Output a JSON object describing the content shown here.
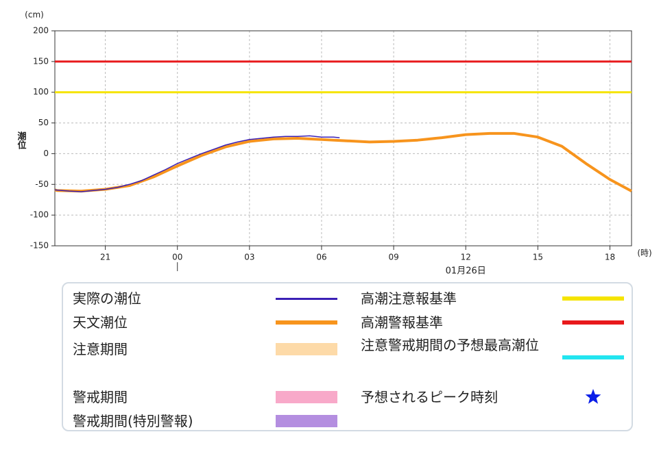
{
  "chart_data": {
    "type": "line",
    "y_unit": "(cm)",
    "y_label": "潮位",
    "x_unit": "(時)",
    "xlim": [
      18.9,
      42.9
    ],
    "xticks": [
      21,
      {
        "value": 24,
        "label": "00"
      },
      {
        "value": 27,
        "label": "03"
      },
      {
        "value": 30,
        "label": "06"
      },
      {
        "value": 33,
        "label": "09"
      },
      {
        "value": 36,
        "label": "12"
      },
      {
        "value": 39,
        "label": "15"
      },
      {
        "value": 42,
        "label": "18"
      }
    ],
    "ylim": [
      -150,
      200
    ],
    "yticks": [
      -150,
      -100,
      -50,
      0,
      50,
      100,
      150,
      200
    ],
    "grid": true,
    "date_annotation": {
      "text": "01月26日",
      "x": 36,
      "day_start": 24
    },
    "series": [
      {
        "name": "実際の潮位",
        "color": "#3a1fb5",
        "width": 1.5,
        "x": [
          18.9,
          19.5,
          20,
          20.5,
          21,
          21.5,
          22,
          22.5,
          23,
          23.5,
          24,
          24.5,
          25,
          25.5,
          26,
          26.5,
          27,
          27.5,
          28,
          28.5,
          29,
          29.5,
          30,
          30.5,
          30.75
        ],
        "values": [
          -59,
          -61,
          -62,
          -60,
          -58,
          -55,
          -50,
          -44,
          -35,
          -26,
          -16,
          -8,
          0,
          7,
          14,
          19,
          23,
          25,
          27,
          28,
          28,
          29,
          27,
          27,
          26
        ]
      },
      {
        "name": "天文潮位",
        "color": "#f7941d",
        "width": 4,
        "x": [
          18.9,
          19,
          20,
          21,
          22,
          23,
          24,
          25,
          26,
          27,
          28,
          29,
          30,
          31,
          32,
          33,
          34,
          35,
          36,
          37,
          38,
          39,
          40,
          41,
          42,
          42.9
        ],
        "values": [
          -59,
          -60,
          -61,
          -58,
          -52,
          -38,
          -20,
          -3,
          11,
          20,
          24,
          25,
          23,
          21,
          19,
          20,
          22,
          26,
          31,
          33,
          33,
          27,
          12,
          -16,
          -42,
          -61
        ]
      }
    ],
    "reference_lines": [
      {
        "name": "高潮注意報基準",
        "value": 100,
        "color": "#f5e400"
      },
      {
        "name": "高潮警報基準",
        "value": 150,
        "color": "#e8191b"
      }
    ],
    "bands": [
      {
        "name": "注意期間",
        "color": "#fddaa8"
      },
      {
        "name": "警戒期間",
        "color": "#f8a9c9"
      },
      {
        "name": "警戒期間(特別警報)",
        "color": "#b48ee0"
      }
    ],
    "markers": [
      {
        "name": "注意警戒期間の予想最高潮位",
        "color": "#22e5f0",
        "kind": "line"
      },
      {
        "name": "予想されるピーク時刻",
        "color": "#0a1ee8",
        "kind": "star"
      }
    ]
  }
}
